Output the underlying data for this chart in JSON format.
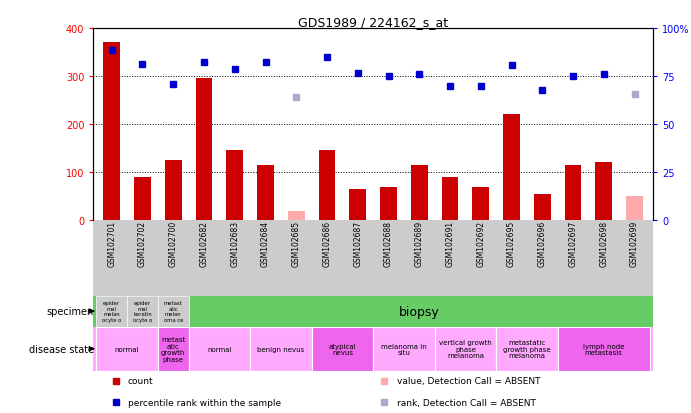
{
  "title": "GDS1989 / 224162_s_at",
  "samples": [
    "GSM102701",
    "GSM102702",
    "GSM102700",
    "GSM102682",
    "GSM102683",
    "GSM102684",
    "GSM102685",
    "GSM102686",
    "GSM102687",
    "GSM102688",
    "GSM102689",
    "GSM102691",
    "GSM102692",
    "GSM102695",
    "GSM102696",
    "GSM102697",
    "GSM102698",
    "GSM102699"
  ],
  "counts": [
    370,
    90,
    125,
    295,
    145,
    115,
    null,
    145,
    65,
    68,
    115,
    90,
    70,
    220,
    55,
    115,
    120,
    null
  ],
  "counts_absent": [
    null,
    null,
    null,
    null,
    null,
    null,
    20,
    null,
    null,
    null,
    null,
    null,
    null,
    null,
    null,
    null,
    null,
    50
  ],
  "percentile_ranks_left": [
    355,
    325,
    283,
    330,
    315,
    330,
    null,
    340,
    307,
    300,
    305,
    280,
    280,
    323,
    270,
    300,
    305,
    null
  ],
  "percentile_ranks_absent_left": [
    null,
    null,
    null,
    null,
    null,
    null,
    257,
    null,
    null,
    null,
    null,
    null,
    null,
    null,
    null,
    null,
    null,
    262
  ],
  "ylim_left": [
    0,
    400
  ],
  "yticks_left": [
    0,
    100,
    200,
    300,
    400
  ],
  "yticks_right": [
    0,
    25,
    50,
    75,
    100
  ],
  "ytick_labels_right": [
    "0",
    "25",
    "50",
    "75",
    "100%"
  ],
  "specimen_labels": [
    "epider\nmal\nmelan\nocyte o",
    "epider\nmal\nkeratin\nocyte o",
    "metast\natic\nmelan\noma ce"
  ],
  "biopsy_label": "biopsy",
  "biopsy_color": "#66cc66",
  "cell_color": "#cccccc",
  "disease_groups": [
    {
      "label": "normal",
      "indices": [
        0,
        1
      ],
      "color": "#ffaaff"
    },
    {
      "label": "metast\natic\ngrowth\nphase",
      "indices": [
        2
      ],
      "color": "#ee66ee"
    },
    {
      "label": "normal",
      "indices": [
        3,
        4
      ],
      "color": "#ffaaff"
    },
    {
      "label": "benign nevus",
      "indices": [
        5,
        6
      ],
      "color": "#ffaaff"
    },
    {
      "label": "atypical\nnevus",
      "indices": [
        7,
        8
      ],
      "color": "#ee66ee"
    },
    {
      "label": "melanoma in\nsitu",
      "indices": [
        9,
        10
      ],
      "color": "#ffaaff"
    },
    {
      "label": "vertical growth\nphase\nmelanoma",
      "indices": [
        11,
        12
      ],
      "color": "#ffaaff"
    },
    {
      "label": "metastatic\ngrowth phase\nmelanoma",
      "indices": [
        13,
        14
      ],
      "color": "#ffaaff"
    },
    {
      "label": "lymph node\nmetastasis",
      "indices": [
        15,
        16,
        17
      ],
      "color": "#ee66ee"
    }
  ],
  "bar_color": "#cc0000",
  "bar_absent_color": "#ffaaaa",
  "dot_color": "#0000cc",
  "dot_absent_color": "#aaaacc",
  "legend_items": [
    {
      "color": "#cc0000",
      "marker": "s",
      "label": "count"
    },
    {
      "color": "#0000cc",
      "marker": "s",
      "label": "percentile rank within the sample"
    },
    {
      "color": "#ffaaaa",
      "marker": "s",
      "label": "value, Detection Call = ABSENT"
    },
    {
      "color": "#aaaacc",
      "marker": "s",
      "label": "rank, Detection Call = ABSENT"
    }
  ],
  "bg_color": "#ffffff",
  "tick_bg": "#cccccc"
}
